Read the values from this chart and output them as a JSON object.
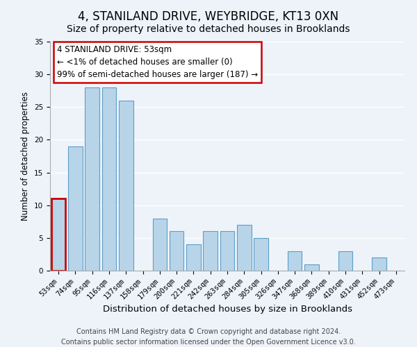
{
  "title": "4, STANILAND DRIVE, WEYBRIDGE, KT13 0XN",
  "subtitle": "Size of property relative to detached houses in Brooklands",
  "xlabel": "Distribution of detached houses by size in Brooklands",
  "ylabel": "Number of detached properties",
  "categories": [
    "53sqm",
    "74sqm",
    "95sqm",
    "116sqm",
    "137sqm",
    "158sqm",
    "179sqm",
    "200sqm",
    "221sqm",
    "242sqm",
    "263sqm",
    "284sqm",
    "305sqm",
    "326sqm",
    "347sqm",
    "368sqm",
    "389sqm",
    "410sqm",
    "431sqm",
    "452sqm",
    "473sqm"
  ],
  "values": [
    11,
    19,
    28,
    28,
    26,
    0,
    8,
    6,
    4,
    6,
    6,
    7,
    5,
    0,
    3,
    1,
    0,
    3,
    0,
    2,
    0
  ],
  "bar_color": "#b8d4e8",
  "bar_edge_color": "#5a9ec8",
  "highlight_bar_index": 0,
  "highlight_bar_edge_color": "#cc0000",
  "annotation_line1": "4 STANILAND DRIVE: 53sqm",
  "annotation_line2": "← <1% of detached houses are smaller (0)",
  "annotation_line3": "99% of semi-detached houses are larger (187) →",
  "ylim": [
    0,
    35
  ],
  "yticks": [
    0,
    5,
    10,
    15,
    20,
    25,
    30,
    35
  ],
  "footer_line1": "Contains HM Land Registry data © Crown copyright and database right 2024.",
  "footer_line2": "Contains public sector information licensed under the Open Government Licence v3.0.",
  "title_fontsize": 12,
  "subtitle_fontsize": 10,
  "xlabel_fontsize": 9.5,
  "ylabel_fontsize": 8.5,
  "tick_fontsize": 7.5,
  "annotation_fontsize": 8.5,
  "footer_fontsize": 7,
  "background_color": "#eef3fa",
  "plot_background_color": "#eef3fa",
  "grid_color": "#ffffff"
}
